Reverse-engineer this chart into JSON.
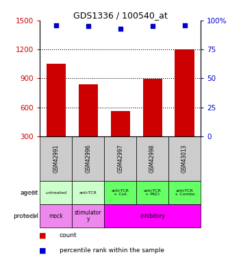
{
  "title": "GDS1336 / 100540_at",
  "samples": [
    "GSM42991",
    "GSM42996",
    "GSM42997",
    "GSM42998",
    "GSM43013"
  ],
  "counts": [
    1050,
    840,
    560,
    895,
    1200
  ],
  "percentile_ranks": [
    96,
    95,
    93,
    95,
    96
  ],
  "ylim_left": [
    300,
    1500
  ],
  "ylim_right": [
    0,
    100
  ],
  "yticks_left": [
    300,
    600,
    900,
    1200,
    1500
  ],
  "yticks_right": [
    0,
    25,
    50,
    75,
    100
  ],
  "bar_color": "#cc0000",
  "point_color": "#0000cc",
  "agent_labels": [
    "untreated",
    "anti-TCR",
    "anti-TCR\n+ CsA",
    "anti-TCR\n+ PKCi",
    "anti-TCR\n+ Combo"
  ],
  "agent_bg_colors": [
    "#ccffcc",
    "#ccffcc",
    "#66ff66",
    "#66ff66",
    "#66ff66"
  ],
  "protocol_groups": [
    {
      "start": 0,
      "end": 0,
      "label": "mock",
      "color": "#ee88ee"
    },
    {
      "start": 1,
      "end": 1,
      "label": "stimulator\ny",
      "color": "#ee88ee"
    },
    {
      "start": 2,
      "end": 4,
      "label": "inhibitory",
      "color": "#ff00ff"
    }
  ],
  "sample_bg_color": "#cccccc",
  "legend_count_color": "#cc0000",
  "legend_pct_color": "#0000cc",
  "gridline_y": [
    600,
    900,
    1200
  ]
}
